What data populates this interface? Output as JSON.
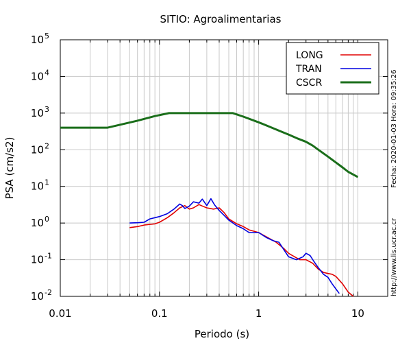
{
  "chart_data": {
    "type": "line",
    "title": "SITIO: Agroalimentarias",
    "xlabel": "Periodo (s)",
    "ylabel": "PSA (cm/s2)",
    "xscale": "log",
    "yscale": "log",
    "xlim": [
      0.01,
      20
    ],
    "ylim": [
      0.01,
      100000
    ],
    "grid": true,
    "legend_position": "top-right",
    "x_ticks": [
      {
        "value": 0.01,
        "label": "0.01"
      },
      {
        "value": 0.1,
        "label": "0.1"
      },
      {
        "value": 1,
        "label": "1"
      },
      {
        "value": 10,
        "label": "10"
      }
    ],
    "y_ticks": [
      {
        "value": 0.01,
        "base": "10",
        "exp": "-2"
      },
      {
        "value": 0.1,
        "base": "10",
        "exp": "-1"
      },
      {
        "value": 1,
        "base": "10",
        "exp": "0"
      },
      {
        "value": 10,
        "base": "10",
        "exp": "1"
      },
      {
        "value": 100,
        "base": "10",
        "exp": "2"
      },
      {
        "value": 1000,
        "base": "10",
        "exp": "3"
      },
      {
        "value": 10000,
        "base": "10",
        "exp": "4"
      },
      {
        "value": 100000,
        "base": "10",
        "exp": "5"
      }
    ],
    "series": [
      {
        "name": "LONG",
        "color": "#e00000",
        "width": 1.6,
        "x": [
          0.05,
          0.06,
          0.07,
          0.08,
          0.09,
          0.1,
          0.12,
          0.14,
          0.16,
          0.18,
          0.2,
          0.22,
          0.25,
          0.28,
          0.3,
          0.35,
          0.4,
          0.45,
          0.5,
          0.6,
          0.7,
          0.8,
          1.0,
          1.2,
          1.5,
          1.8,
          2.0,
          2.3,
          2.6,
          3.0,
          3.5,
          4.0,
          4.5,
          5.0,
          5.5,
          6.0,
          7.0,
          8.0,
          9.0
        ],
        "y": [
          0.75,
          0.8,
          0.88,
          0.92,
          0.95,
          1.05,
          1.4,
          1.9,
          2.6,
          3.0,
          2.4,
          2.6,
          3.2,
          2.8,
          2.6,
          2.4,
          2.6,
          1.9,
          1.3,
          0.95,
          0.8,
          0.65,
          0.55,
          0.42,
          0.3,
          0.2,
          0.15,
          0.12,
          0.1,
          0.1,
          0.08,
          0.055,
          0.045,
          0.042,
          0.04,
          0.035,
          0.022,
          0.013,
          0.01
        ]
      },
      {
        "name": "TRAN",
        "color": "#0000e0",
        "width": 1.6,
        "x": [
          0.05,
          0.06,
          0.07,
          0.08,
          0.09,
          0.1,
          0.12,
          0.14,
          0.16,
          0.17,
          0.18,
          0.2,
          0.22,
          0.25,
          0.27,
          0.3,
          0.33,
          0.36,
          0.4,
          0.45,
          0.5,
          0.6,
          0.7,
          0.8,
          1.0,
          1.2,
          1.4,
          1.6,
          2.0,
          2.4,
          2.8,
          3.0,
          3.3,
          3.6,
          4.0,
          4.5,
          5.0,
          5.5,
          6.0,
          6.5
        ],
        "y": [
          1.0,
          1.02,
          1.05,
          1.3,
          1.4,
          1.5,
          1.8,
          2.4,
          3.3,
          3.0,
          2.5,
          2.9,
          3.8,
          3.5,
          4.5,
          3.0,
          4.6,
          3.1,
          2.2,
          1.6,
          1.2,
          0.85,
          0.7,
          0.55,
          0.55,
          0.4,
          0.33,
          0.3,
          0.12,
          0.1,
          0.12,
          0.15,
          0.13,
          0.09,
          0.06,
          0.04,
          0.033,
          0.022,
          0.016,
          0.012
        ]
      },
      {
        "name": "CSCR",
        "color": "#1a6e1a",
        "width": 3,
        "x": [
          0.01,
          0.03,
          0.06,
          0.09,
          0.125,
          0.2,
          0.3,
          0.4,
          0.55,
          0.7,
          1.0,
          1.3,
          1.7,
          2.0,
          2.5,
          3.0,
          3.5,
          4.0,
          5.0,
          6.0,
          7.0,
          8.0,
          10.0
        ],
        "y": [
          400,
          400,
          620,
          830,
          1000,
          1000,
          1000,
          1000,
          1000,
          800,
          560,
          420,
          310,
          260,
          200,
          165,
          130,
          100,
          65,
          45,
          33,
          25,
          18
        ]
      }
    ]
  },
  "footer": {
    "date": "Fecha: 2020-01-03 Hora: 09:35:26",
    "url": "http://www.lis.ucr.ac.cr"
  }
}
